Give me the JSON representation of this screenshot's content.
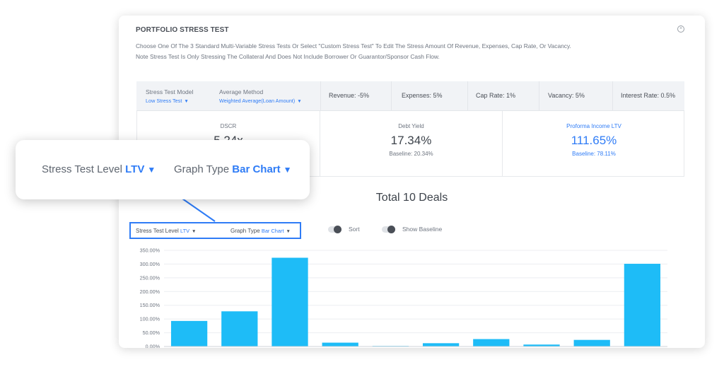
{
  "modal": {
    "title": "PORTFOLIO STRESS TEST",
    "close_glyph": "×",
    "description_line1": "Choose One Of The 3 Standard Multi-Variable Stress Tests Or Select \"Custom Stress Test\" To Edit The Stress Amount Of Revenue, Expenses, Cap Rate, Or Vacancy.",
    "description_line2": "Note Stress Test Is Only Stressing The Collateral And Does Not Include Borrower Or Guarantor/Sponsor Cash Flow."
  },
  "stress_bar": {
    "model_label": "Stress Test Model",
    "model_value": "Low Stress Test",
    "method_label": "Average Method",
    "method_value": "Weighted Average(Loan Amount)",
    "revenue": "Revenue: -5%",
    "expenses": "Expenses: 5%",
    "cap_rate": "Cap Rate: 1%",
    "vacancy": "Vacancy: 5%",
    "interest_rate": "Interest Rate: 0.5%"
  },
  "metrics": [
    {
      "label": "DSCR",
      "value": "5.24x",
      "baseline": ""
    },
    {
      "label": "Debt Yield",
      "value": "17.34%",
      "baseline": "Baseline: 20.34%"
    },
    {
      "label": "Proforma Income LTV",
      "value": "111.65%",
      "baseline": "Baseline: 78.11%"
    }
  ],
  "deals_title": "Total 10 Deals",
  "controls": {
    "level_label": "Stress Test Level",
    "level_value": "LTV",
    "graph_label": "Graph Type",
    "graph_value": "Bar Chart",
    "sort_label": "Sort",
    "baseline_label": "Show Baseline",
    "caret": "▼"
  },
  "callout": {
    "level_label": "Stress Test Level",
    "level_value": "LTV",
    "graph_label": "Graph Type",
    "graph_value": "Bar Chart",
    "caret": "▼"
  },
  "colors": {
    "accent": "#2f7cf6",
    "bar": "#1ebcf7"
  },
  "chart_data": {
    "type": "bar",
    "categories": [
      "",
      "",
      "",
      "",
      "",
      "",
      "",
      "",
      "",
      ""
    ],
    "values": [
      93,
      128,
      323,
      14,
      2,
      12,
      27,
      7,
      24,
      301
    ],
    "ylim": [
      0,
      350
    ],
    "yticks": [
      "0.00%",
      "50.00%",
      "100.00%",
      "150.00%",
      "200.00%",
      "250.00%",
      "300.00%",
      "350.00%"
    ],
    "grid": true
  }
}
